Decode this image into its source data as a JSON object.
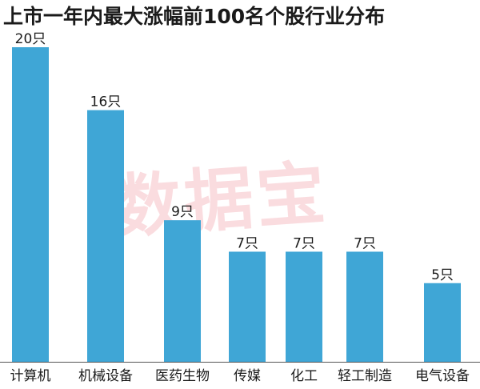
{
  "chart_data": {
    "type": "bar",
    "title": "上市一年内最大涨幅前100名个股行业分布",
    "categories": [
      "计算机",
      "机械设备",
      "医药生物",
      "传媒",
      "化工",
      "轻工制造",
      "电气设备"
    ],
    "values": [
      20,
      16,
      9,
      7,
      7,
      7,
      5
    ],
    "data_labels": [
      "20只",
      "16只",
      "9只",
      "7只",
      "7只",
      "7只",
      "5只"
    ],
    "ylim": [
      0,
      20
    ],
    "grid": false,
    "bar_color": "#3fa6d6"
  },
  "watermark": "数据宝"
}
